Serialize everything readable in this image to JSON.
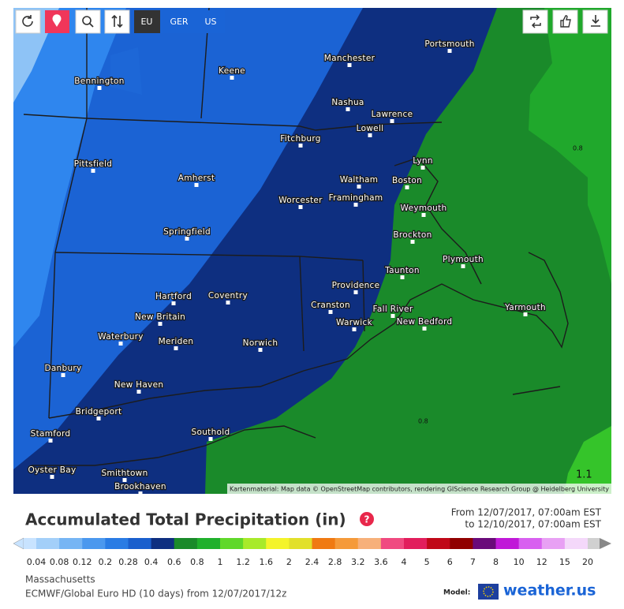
{
  "toolbar": {
    "regions": [
      "EU",
      "GER",
      "US"
    ]
  },
  "map": {
    "places": [
      "Manchester",
      "Portsmouth",
      "Keene",
      "Bennington",
      "Nashua",
      "Lawrence",
      "Lowell",
      "Fitchburg",
      "Pittsfield",
      "Lynn",
      "Amherst",
      "Waltham",
      "Boston",
      "Framingham",
      "Worcester",
      "Weymouth",
      "Springfield",
      "Brockton",
      "Plymouth",
      "Taunton",
      "Providence",
      "Hartford",
      "Coventry",
      "Cranston",
      "Fall River",
      "Yarmouth",
      "New Britain",
      "Warwick",
      "New Bedford",
      "Waterbury",
      "Meriden",
      "Norwich",
      "Danbury",
      "New Haven",
      "Bridgeport",
      "Southold",
      "Stamford",
      "Oyster Bay",
      "Smithtown",
      "Brookhaven"
    ],
    "contour_labels": [
      "0.8",
      "0.8",
      "1.1"
    ],
    "attribution": "Kartenmaterial: Map data © OpenStreetMap contributors, rendering GIScience Research Group @ Heidelberg University"
  },
  "header": {
    "title": "Accumulated Total Precipitation (in)",
    "from": "From 12/07/2017, 07:00am EST",
    "to": "to 12/10/2017, 07:00am EST"
  },
  "legend": {
    "labels": [
      "0.04",
      "0.08",
      "0.12",
      "0.2",
      "0.28",
      "0.4",
      "0.6",
      "0.8",
      "1",
      "1.2",
      "1.6",
      "2",
      "2.4",
      "2.8",
      "3.2",
      "3.6",
      "4",
      "5",
      "6",
      "7",
      "8",
      "10",
      "12",
      "15",
      "20"
    ]
  },
  "footer": {
    "location": "Massachusetts",
    "model": "ECMWF/Global Euro HD (10 days) from 12/07/2017/12z",
    "model_label": "Model:",
    "brand": "weather.us"
  }
}
